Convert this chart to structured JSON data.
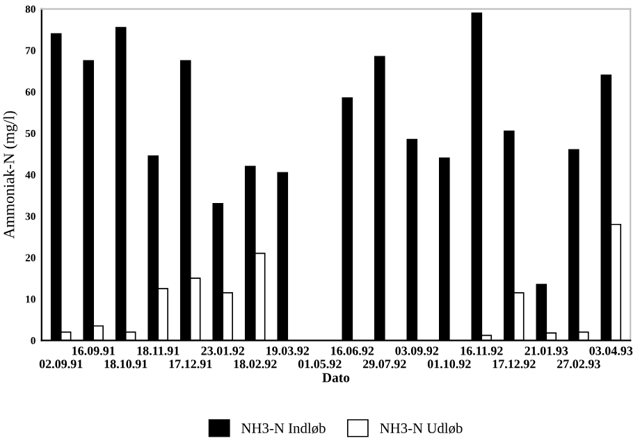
{
  "chart_data": {
    "type": "bar",
    "xlabel": "Dato",
    "ylabel": "Ammoniak-N (mg/l)",
    "categories": [
      "02.09.91",
      "16.09.91",
      "18.10.91",
      "18.11.91",
      "17.12.91",
      "23.01.92",
      "18.02.92",
      "19.03.92",
      "01.05.92",
      "16.06.92",
      "29.07.92",
      "03.09.92",
      "01.10.92",
      "16.11.92",
      "17.12.92",
      "21.01.93",
      "27.02.93",
      "03.04.93"
    ],
    "series": [
      {
        "name": "NH3-N Indløb",
        "color": "#000000",
        "values": [
          74,
          67.5,
          75.5,
          44.5,
          67.5,
          33,
          42,
          40.5,
          null,
          58.5,
          68.5,
          48.5,
          44,
          79,
          50.5,
          13.5,
          46,
          64
        ]
      },
      {
        "name": "NH3-N Udløb",
        "color": "#ffffff",
        "values": [
          2,
          3.5,
          2,
          12.5,
          15,
          11.5,
          21,
          null,
          null,
          null,
          null,
          null,
          null,
          1.2,
          11.5,
          1.8,
          2,
          28
        ]
      }
    ],
    "ylim": [
      0,
      80
    ],
    "yticks": [
      0,
      10,
      20,
      30,
      40,
      50,
      60,
      70,
      80
    ],
    "grid": false,
    "legend": "bottom"
  }
}
